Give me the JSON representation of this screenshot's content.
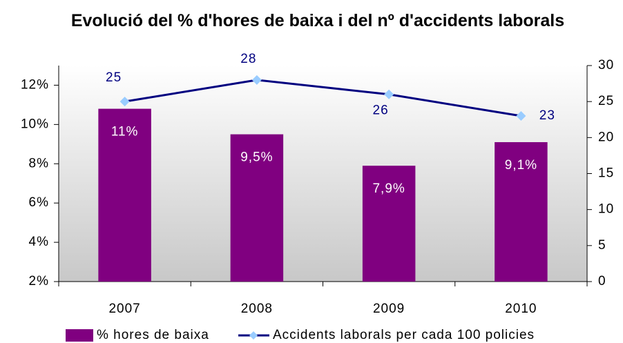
{
  "chart_data": {
    "type": "bar_line",
    "title": "Evolució del % d'hores de baixa i del nº d'accidents laborals",
    "categories": [
      "2007",
      "2008",
      "2009",
      "2010"
    ],
    "series": [
      {
        "name": "% hores de baixa",
        "type": "bar",
        "color": "#800080",
        "values": [
          10.8,
          9.5,
          7.9,
          9.1
        ],
        "value_labels": [
          "11%",
          "9,5%",
          "7,9%",
          "9,1%"
        ]
      },
      {
        "name": "Accidents laborals per cada 100 policies",
        "type": "line",
        "axis": "y2",
        "color": "#000080",
        "marker_color": "#99ccff",
        "values": [
          25,
          28,
          26,
          23
        ]
      }
    ],
    "ylim": [
      2,
      13
    ],
    "yticks": [
      {
        "value": 2,
        "label": "2%"
      },
      {
        "value": 4,
        "label": "4%"
      },
      {
        "value": 6,
        "label": "6%"
      },
      {
        "value": 8,
        "label": "8%"
      },
      {
        "value": 10,
        "label": "10%"
      },
      {
        "value": 12,
        "label": "12%"
      }
    ],
    "y2lim": [
      0,
      30
    ],
    "y2ticks": [
      0,
      5,
      10,
      15,
      20,
      25,
      30
    ],
    "legend": "bottom"
  }
}
